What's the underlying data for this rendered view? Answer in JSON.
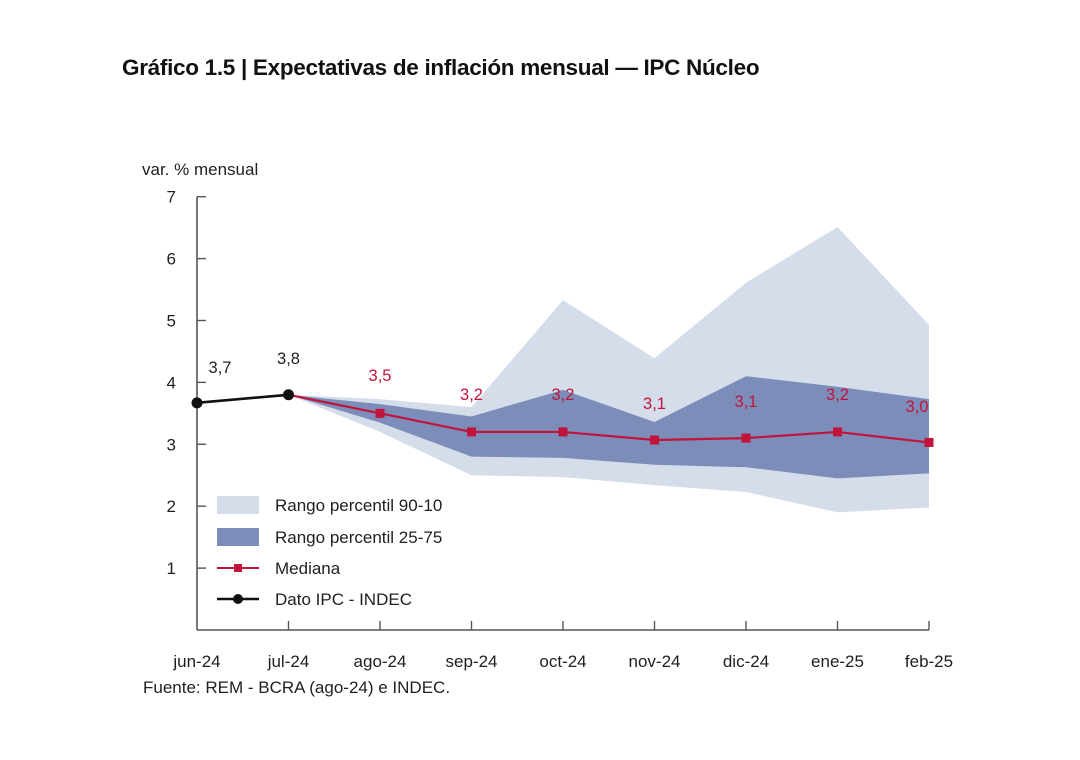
{
  "title": "Gráfico 1.5 | Expectativas de inflación mensual — IPC Núcleo",
  "source": "Fuente: REM - BCRA (ago-24) e INDEC.",
  "colors": {
    "band_90_10": "#d5dcea",
    "band_25_75": "#7b8db8",
    "median": "#c0143c",
    "ipc": "#111111",
    "axis": "#555555"
  },
  "chart_data": {
    "type": "area",
    "title": "Gráfico 1.5 | Expectativas de inflación mensual — IPC Núcleo",
    "xlabel": "",
    "ylabel": "var. % mensual",
    "ylim": [
      0,
      7
    ],
    "yticks": [
      "1",
      "2",
      "3",
      "4",
      "5",
      "6",
      "7"
    ],
    "categories": [
      "jun-24",
      "jul-24",
      "ago-24",
      "sep-24",
      "oct-24",
      "nov-24",
      "dic-24",
      "ene-25",
      "feb-25"
    ],
    "grid": false,
    "legend_position": "bottom-left",
    "series": [
      {
        "name": "Rango percentil 90-10",
        "kind": "band",
        "start_index": 1,
        "upper": [
          3.8,
          3.73,
          3.6,
          5.33,
          4.39,
          5.61,
          6.51,
          4.93
        ],
        "lower": [
          3.8,
          3.2,
          2.5,
          2.47,
          2.34,
          2.23,
          1.9,
          1.98
        ]
      },
      {
        "name": "Rango percentil 25-75",
        "kind": "band",
        "start_index": 1,
        "upper": [
          3.8,
          3.65,
          3.45,
          3.88,
          3.36,
          4.1,
          3.93,
          3.73
        ],
        "lower": [
          3.8,
          3.35,
          2.8,
          2.78,
          2.67,
          2.63,
          2.45,
          2.53
        ]
      },
      {
        "name": "Mediana",
        "kind": "line",
        "start_index": 1,
        "values": [
          3.8,
          3.5,
          3.2,
          3.2,
          3.07,
          3.1,
          3.2,
          3.03
        ],
        "labels": [
          null,
          "3,5",
          "3,2",
          "3,2",
          "3,1",
          "3,1",
          "3,2",
          "3,0"
        ]
      },
      {
        "name": "Dato IPC - INDEC",
        "kind": "line",
        "start_index": 0,
        "values": [
          3.67,
          3.8
        ],
        "labels": [
          "3,7",
          "3,8"
        ]
      }
    ]
  }
}
